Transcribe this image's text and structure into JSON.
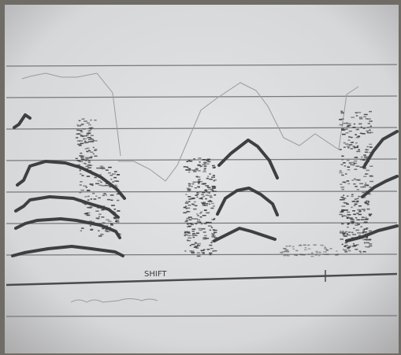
{
  "label": "SHIFT"
}
